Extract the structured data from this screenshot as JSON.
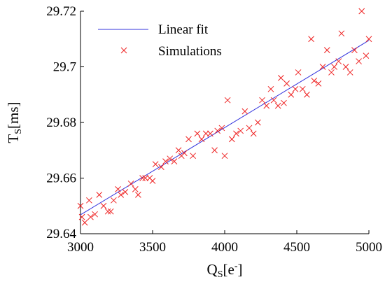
{
  "chart_data": {
    "type": "scatter",
    "title": "",
    "xlabel": {
      "main": "Q",
      "sub": "S",
      "rest": "[e",
      "sup": "-",
      "end": "]"
    },
    "ylabel": {
      "main": "T",
      "sub": "S",
      "rest": "[ms]"
    },
    "xlim": [
      3000,
      5000
    ],
    "ylim": [
      29.64,
      29.72
    ],
    "xticks": [
      3000,
      3500,
      4000,
      4500,
      5000
    ],
    "yticks": [
      29.64,
      29.66,
      29.68,
      29.7,
      29.72
    ],
    "xtick_labels": [
      "3000",
      "3500",
      "4000",
      "4500",
      "5000"
    ],
    "ytick_labels": [
      "29.64",
      "29.66",
      "29.68",
      "29.7",
      "29.72"
    ],
    "grid": false,
    "legend_position": "top-left",
    "colors": {
      "fit": "#3333dd",
      "points": "#ee2222",
      "axes": "#000000"
    },
    "series": [
      {
        "name": "Linear fit",
        "type": "line",
        "x": [
          3000,
          5000
        ],
        "y": [
          29.6468,
          29.7095
        ]
      },
      {
        "name": "Simulations",
        "type": "scatter",
        "x": [
          3000,
          3010,
          3030,
          3060,
          3070,
          3100,
          3130,
          3160,
          3190,
          3210,
          3230,
          3260,
          3280,
          3310,
          3350,
          3380,
          3400,
          3430,
          3450,
          3480,
          3500,
          3520,
          3560,
          3590,
          3620,
          3650,
          3680,
          3700,
          3720,
          3750,
          3780,
          3810,
          3840,
          3870,
          3900,
          3930,
          3950,
          3980,
          4000,
          4020,
          4050,
          4080,
          4110,
          4140,
          4170,
          4200,
          4230,
          4260,
          4290,
          4320,
          4340,
          4370,
          4390,
          4410,
          4430,
          4460,
          4490,
          4510,
          4540,
          4570,
          4600,
          4620,
          4650,
          4680,
          4710,
          4740,
          4760,
          4790,
          4810,
          4840,
          4870,
          4900,
          4930,
          4950,
          4980,
          5000
        ],
        "y": [
          29.65,
          29.646,
          29.644,
          29.652,
          29.646,
          29.647,
          29.654,
          29.65,
          29.648,
          29.648,
          29.652,
          29.656,
          29.654,
          29.655,
          29.658,
          29.656,
          29.654,
          29.66,
          29.66,
          29.66,
          29.659,
          29.665,
          29.664,
          29.666,
          29.667,
          29.666,
          29.67,
          29.668,
          29.669,
          29.674,
          29.668,
          29.676,
          29.674,
          29.676,
          29.676,
          29.67,
          29.677,
          29.678,
          29.668,
          29.688,
          29.674,
          29.676,
          29.677,
          29.684,
          29.678,
          29.676,
          29.68,
          29.688,
          29.686,
          29.692,
          29.688,
          29.686,
          29.696,
          29.687,
          29.694,
          29.69,
          29.692,
          29.698,
          29.692,
          29.69,
          29.71,
          29.695,
          29.694,
          29.7,
          29.706,
          29.698,
          29.7,
          29.702,
          29.712,
          29.7,
          29.698,
          29.706,
          29.702,
          29.72,
          29.704,
          29.71
        ]
      }
    ]
  }
}
